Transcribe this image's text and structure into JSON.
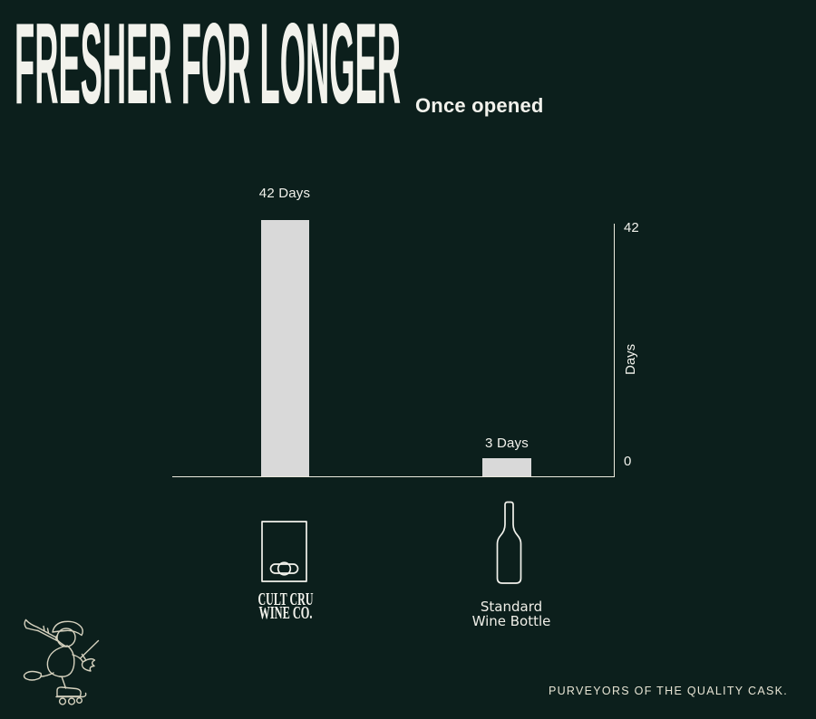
{
  "header": {
    "title": "FRESHER FOR LONGER",
    "subtitle": "Once opened"
  },
  "chart_data": {
    "type": "bar",
    "title": "FRESHER FOR LONGER",
    "subtitle": "Once opened",
    "categories": [
      "Cult Cru Wine Co. box",
      "Standard Wine Bottle"
    ],
    "values": [
      42,
      3
    ],
    "bar_labels": [
      "42 Days",
      "3 Days"
    ],
    "xlabel": "",
    "ylabel": "Days",
    "ylim": [
      0,
      42
    ],
    "yticks": [
      42,
      0
    ],
    "grid": false,
    "legend_position": "none",
    "bar_color": "#d9d9d9"
  },
  "axis": {
    "top_tick": "42",
    "bottom_tick": "0",
    "label": "Days"
  },
  "legend": {
    "box": {
      "icon": "box-wine-icon",
      "lines": [
        "CULT CRU",
        "WINE CO."
      ]
    },
    "bottle": {
      "icon": "wine-bottle-icon",
      "lines": [
        "Standard",
        "Wine Bottle"
      ]
    }
  },
  "footer": {
    "tagline": "PURVEYORS OF THE QUALITY CASK.",
    "mascot_icon": "skating-trumpeter-icon"
  },
  "colors": {
    "background": "#0c1f1c",
    "bar": "#d9d9d9",
    "text": "#f2f2ec",
    "cream": "#e7e4d4",
    "line_art": "#d6d2bf"
  }
}
